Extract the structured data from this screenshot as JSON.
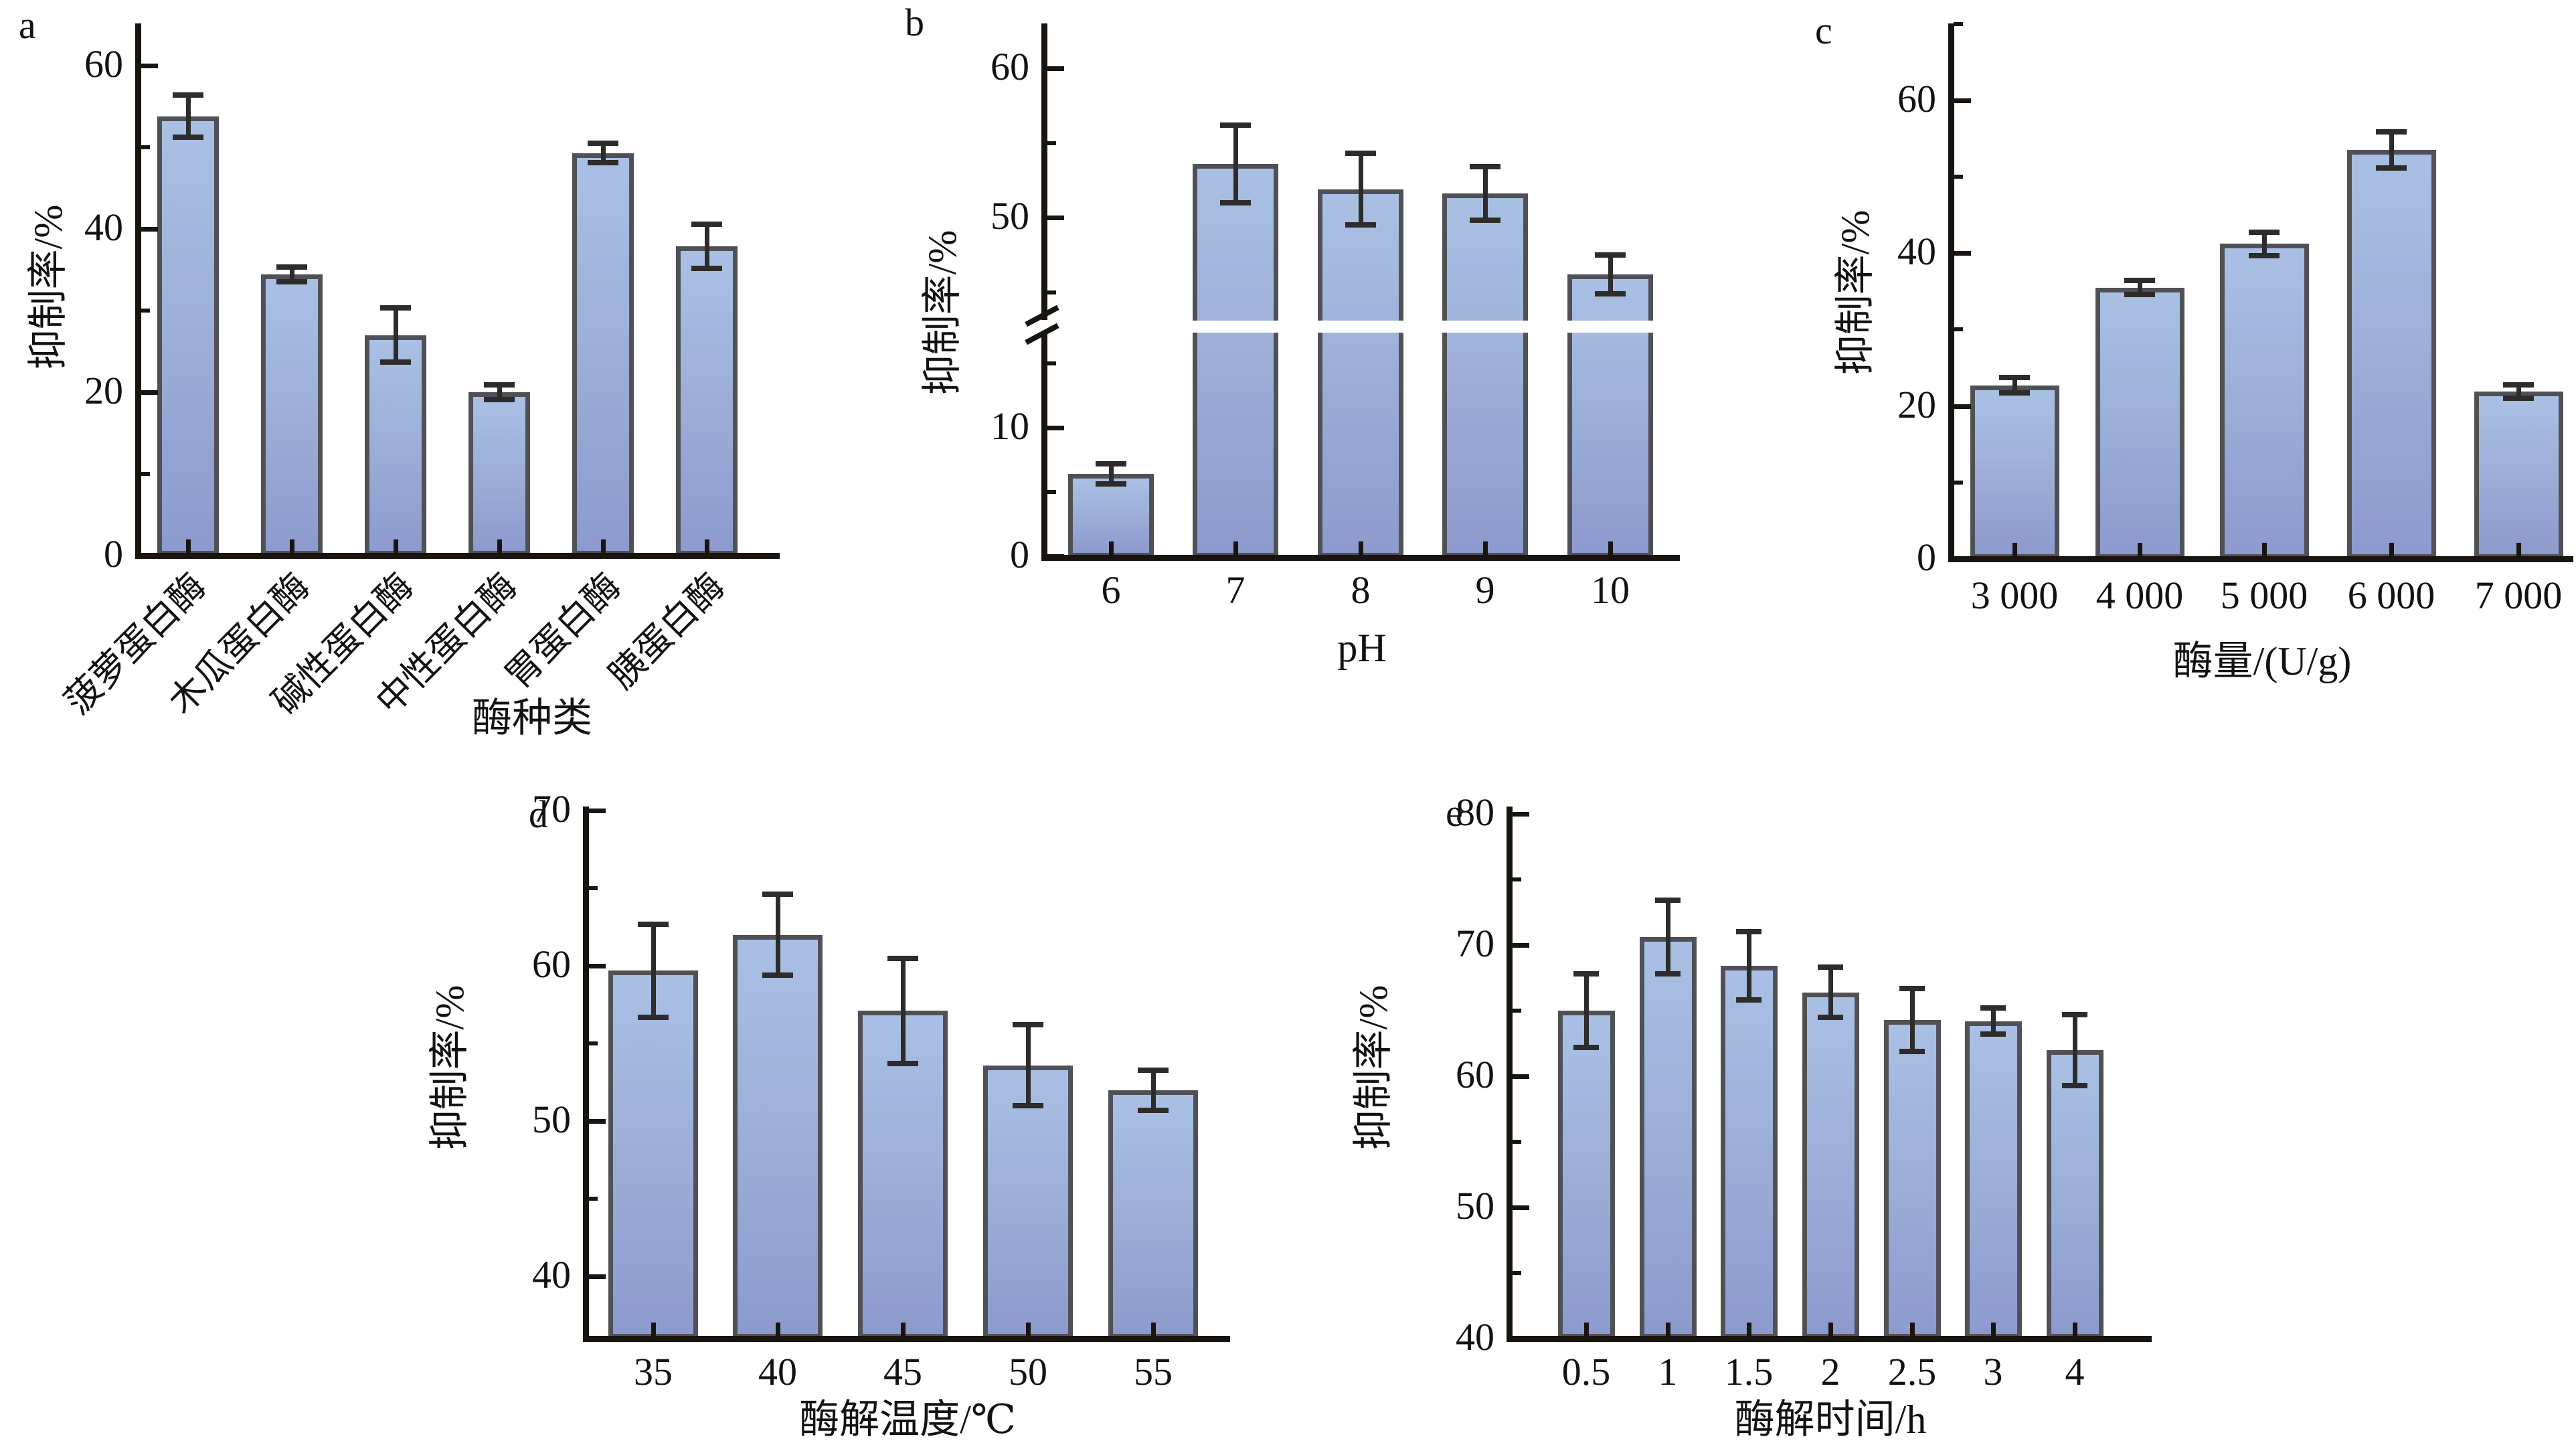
{
  "figure_title": "",
  "colors": {
    "bar_fill_top": "#a9c0e4",
    "bar_fill_bottom": "#8d9acd",
    "bar_border": "#4f5156",
    "error_bar": "#2d2c2a",
    "axis": "#1a1410",
    "text": "#121212",
    "background": "#ffffff"
  },
  "chart_data": [
    {
      "id": "a",
      "type": "bar",
      "panel_label": "a",
      "title": "",
      "xlabel": "酶种类",
      "ylabel": "抑制率/%",
      "categories": [
        "菠萝蛋白酶",
        "木瓜蛋白酶",
        "碱性蛋白酶",
        "中性蛋白酶",
        "胃蛋白酶",
        "胰蛋白酶"
      ],
      "values": [
        53.8,
        34.4,
        27.0,
        20.0,
        49.3,
        37.9
      ],
      "errors": [
        2.6,
        0.9,
        3.3,
        0.9,
        1.2,
        2.7
      ],
      "ylim": [
        0,
        65
      ],
      "yticks_major": [
        0,
        20,
        40,
        60
      ],
      "yticks_minor": [
        10,
        30,
        50
      ],
      "x_tick_rotation": 45,
      "grid": false,
      "legend": null
    },
    {
      "id": "b",
      "type": "bar",
      "panel_label": "b",
      "title": "",
      "xlabel": "pH",
      "ylabel": "抑制率/%",
      "categories": [
        "6",
        "7",
        "8",
        "9",
        "10"
      ],
      "values": [
        6.4,
        53.6,
        51.9,
        51.6,
        46.2
      ],
      "errors": [
        0.8,
        2.6,
        2.4,
        1.8,
        1.3
      ],
      "axis_break": {
        "lower_segment_range": [
          0,
          15
        ],
        "upper_segment_range": [
          43,
          63
        ],
        "yticks_major_lower": [
          0,
          10
        ],
        "yticks_minor_lower": [
          5,
          15
        ],
        "yticks_major_upper": [
          50,
          60
        ],
        "yticks_minor_upper": [
          45,
          55
        ]
      },
      "grid": false,
      "legend": null
    },
    {
      "id": "c",
      "type": "bar",
      "panel_label": "c",
      "title": "",
      "xlabel": "酶量/(U/g)",
      "ylabel": "抑制率/%",
      "categories": [
        "3 000",
        "4 000",
        "5 000",
        "6 000",
        "7 000"
      ],
      "values": [
        22.7,
        35.5,
        41.2,
        53.5,
        21.9
      ],
      "errors": [
        1.0,
        0.9,
        1.5,
        2.4,
        0.9
      ],
      "ylim": [
        0,
        70
      ],
      "yticks_major": [
        0,
        20,
        40,
        60
      ],
      "yticks_minor": [
        10,
        30,
        50,
        70
      ],
      "grid": false,
      "legend": null
    },
    {
      "id": "d",
      "type": "bar",
      "panel_label": "d",
      "title": "",
      "xlabel": "酶解温度/℃",
      "ylabel": "抑制率/%",
      "categories": [
        "35",
        "40",
        "45",
        "50",
        "55"
      ],
      "values": [
        59.7,
        62.0,
        57.1,
        53.6,
        52.0
      ],
      "errors": [
        3.0,
        2.6,
        3.4,
        2.6,
        1.3
      ],
      "ylim": [
        36,
        70.3
      ],
      "yticks_major": [
        40,
        50,
        60,
        70
      ],
      "yticks_minor": [
        45,
        55,
        65
      ],
      "grid": false,
      "legend": null
    },
    {
      "id": "e",
      "type": "bar",
      "panel_label": "e",
      "title": "",
      "xlabel": "酶解时间/h",
      "ylabel": "抑制率/%",
      "categories": [
        "0.5",
        "1",
        "1.5",
        "2",
        "2.5",
        "3",
        "4"
      ],
      "values": [
        65.0,
        70.6,
        68.4,
        66.4,
        64.3,
        64.2,
        62.0
      ],
      "errors": [
        2.8,
        2.8,
        2.6,
        1.9,
        2.4,
        1.0,
        2.7
      ],
      "ylim": [
        40,
        80.6
      ],
      "yticks_major": [
        40,
        50,
        60,
        70,
        80
      ],
      "yticks_minor": [
        45,
        55,
        65,
        75
      ],
      "grid": false,
      "legend": null
    }
  ]
}
